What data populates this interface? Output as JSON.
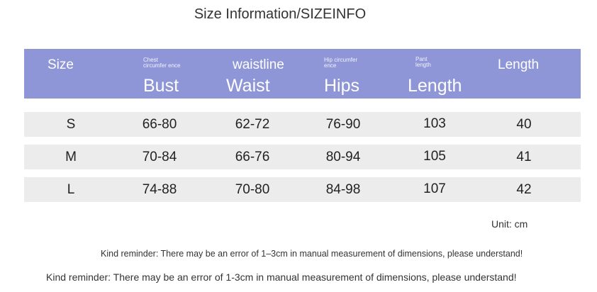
{
  "title": "Size Information/SIZEINFO",
  "header": {
    "size": "Size",
    "bust_small": "Chest circumfer ence",
    "bust": "Bust",
    "waist_small": "waistline",
    "waist": "Waist",
    "hips_small": "Hip circumfer ence",
    "hips": "Hips",
    "length_small": "Pant length",
    "length": "Length",
    "length2": "Length"
  },
  "rows": [
    {
      "size": "S",
      "bust": "66-80",
      "waist": "62-72",
      "hips": "76-90",
      "pant": "103",
      "length": "40"
    },
    {
      "size": "M",
      "bust": "70-84",
      "waist": "66-76",
      "hips": "80-94",
      "pant": "105",
      "length": "41"
    },
    {
      "size": "L",
      "bust": "74-88",
      "waist": "70-80",
      "hips": "84-98",
      "pant": "107",
      "length": "42"
    }
  ],
  "unit": "Unit: cm",
  "reminder_1": "Kind reminder: There may be an error of 1–3cm in manual measurement of dimensions, please understand!",
  "reminder_2": "Kind reminder: There may be an error of 1-3cm in manual measurement of dimensions, please understand!"
}
